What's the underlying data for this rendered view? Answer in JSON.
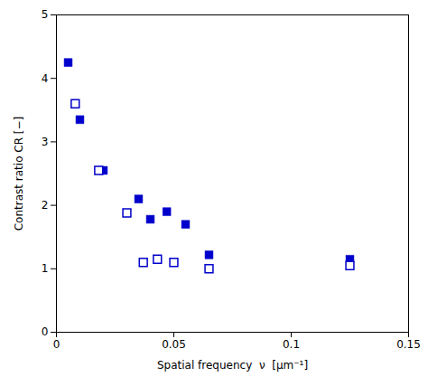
{
  "chart_data": {
    "type": "scatter",
    "xlabel": "Spatial frequency  ν  [μm⁻¹]",
    "ylabel": "Contrast ratio CR [−]",
    "series": [
      {
        "color": "#0000cc",
        "marker": "square",
        "x": [
          0.005,
          0.01,
          0.02,
          0.035,
          0.04,
          0.047,
          0.055,
          0.065,
          0.125
        ],
        "values": [
          4.25,
          3.35,
          2.55,
          2.1,
          1.78,
          1.9,
          1.7,
          1.22,
          1.15
        ]
      },
      {
        "color": "#0000cc",
        "marker": "square-open",
        "x": [
          0.008,
          0.018,
          0.03,
          0.037,
          0.043,
          0.05,
          0.065,
          0.125
        ],
        "values": [
          3.6,
          2.55,
          1.88,
          1.1,
          1.15,
          1.1,
          1.0,
          1.05
        ]
      }
    ],
    "xlim": [
      0,
      0.15
    ],
    "xticks": [
      0,
      0.05,
      0.1,
      0.15
    ],
    "ylim": [
      0,
      5
    ],
    "yticks": [
      0,
      1,
      2,
      3,
      4,
      5
    ],
    "grid": false
  }
}
